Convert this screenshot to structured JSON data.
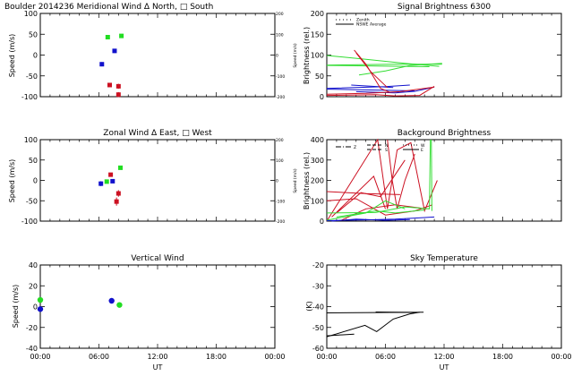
{
  "chart_data": [
    {
      "id": "meridional",
      "type": "scatter",
      "title": "Boulder   2014236     Meridional Wind   Δ North, □ South",
      "ylabel": "Speed (m/s)",
      "y2label": "Speed (m/s)",
      "xlabel": "",
      "xlim": [
        0,
        24
      ],
      "ylim": [
        -100,
        100
      ],
      "y2lim": [
        -200,
        200
      ],
      "yticks": [
        "100",
        "50",
        "0",
        "-50",
        "-100"
      ],
      "y2ticks": [
        "200",
        "100",
        "0",
        "-100",
        "-200"
      ],
      "series": [
        {
          "name": "green",
          "color": "#22dd22",
          "marker": "square",
          "points": [
            [
              6.9,
              43,
              0
            ],
            [
              8.3,
              46,
              0
            ]
          ]
        },
        {
          "name": "blue",
          "color": "#1111cc",
          "marker": "square",
          "points": [
            [
              6.3,
              -22,
              5
            ],
            [
              7.6,
              10,
              5
            ]
          ]
        },
        {
          "name": "red",
          "color": "#cc1122",
          "marker": "square",
          "points": [
            [
              7.1,
              -72,
              4
            ],
            [
              8.0,
              -75,
              6
            ],
            [
              8.0,
              -95,
              6
            ]
          ]
        }
      ]
    },
    {
      "id": "zonal",
      "type": "scatter",
      "title": "Zonal Wind     Δ East, □ West",
      "ylabel": "Speed (m/s)",
      "y2label": "Speed (m/s)",
      "xlim": [
        0,
        24
      ],
      "ylim": [
        -100,
        100
      ],
      "y2lim": [
        -200,
        200
      ],
      "yticks": [
        "100",
        "50",
        "0",
        "-50",
        "-100"
      ],
      "y2ticks": [
        "200",
        "100",
        "0",
        "-100",
        "-200"
      ],
      "series": [
        {
          "name": "green",
          "color": "#22dd22",
          "marker": "square",
          "points": [
            [
              8.2,
              31,
              0
            ],
            [
              6.8,
              -3,
              0
            ]
          ]
        },
        {
          "name": "blue",
          "color": "#1111cc",
          "marker": "square",
          "points": [
            [
              6.2,
              -8,
              6
            ],
            [
              7.4,
              -2,
              3
            ]
          ]
        },
        {
          "name": "red",
          "color": "#cc1122",
          "marker": "square",
          "points": [
            [
              7.2,
              14,
              3
            ],
            [
              8.0,
              -32,
              8
            ],
            [
              7.8,
              -52,
              10
            ]
          ]
        }
      ]
    },
    {
      "id": "vertical",
      "type": "scatter",
      "title": "Vertical Wind",
      "ylabel": "Speed (m/s)",
      "xlabel": "UT",
      "xlim": [
        0,
        24
      ],
      "ylim": [
        -50,
        50
      ],
      "xticks": [
        "00:00",
        "06:00",
        "12:00",
        "18:00",
        "00:00"
      ],
      "yticks": [
        "40",
        "20",
        "0",
        "-20",
        "-40"
      ],
      "series": [
        {
          "name": "green",
          "color": "#22dd22",
          "marker": "circle",
          "points": [
            [
              0.0,
              8
            ],
            [
              8.1,
              2
            ]
          ]
        },
        {
          "name": "blue",
          "color": "#1111cc",
          "marker": "circle",
          "points": [
            [
              0.0,
              -3
            ],
            [
              7.3,
              7
            ]
          ]
        }
      ]
    },
    {
      "id": "signal",
      "type": "line",
      "title": "Signal Brightness       6300",
      "ylabel": "Brightness (rel.)",
      "xlim": [
        0,
        24
      ],
      "ylim": [
        0,
        200
      ],
      "yticks": [
        "200",
        "150",
        "100",
        "50",
        "0"
      ],
      "legend": {
        "position": "top-left",
        "entries": [
          "Zenith",
          "NSWE Average"
        ]
      },
      "series": [
        {
          "name": "green",
          "color": "#33dd33",
          "lines": [
            [
              [
                0,
                99
              ],
              [
                4,
                90
              ],
              [
                8,
                80
              ],
              [
                11.5,
                73
              ]
            ],
            [
              [
                0,
                76
              ],
              [
                7,
                78
              ],
              [
                11.8,
                78
              ]
            ],
            [
              [
                3.3,
                52
              ],
              [
                6,
                62
              ],
              [
                8.5,
                75
              ],
              [
                11.8,
                80
              ]
            ],
            [
              [
                0,
                75
              ],
              [
                10.5,
                72
              ]
            ]
          ]
        },
        {
          "name": "blue",
          "color": "#1111cc",
          "lines": [
            [
              [
                0,
                20
              ],
              [
                6,
                24
              ],
              [
                8.5,
                28
              ]
            ],
            [
              [
                0,
                18
              ],
              [
                5,
                16
              ],
              [
                9,
                14
              ]
            ],
            [
              [
                2.5,
                28
              ],
              [
                6.8,
                22
              ]
            ],
            [
              [
                3,
                12
              ],
              [
                7,
                9
              ],
              [
                9,
                13
              ],
              [
                11,
                23
              ]
            ]
          ]
        },
        {
          "name": "red",
          "color": "#cc1122",
          "lines": [
            [
              [
                2.8,
                112
              ],
              [
                4,
                78
              ],
              [
                5.5,
                20
              ],
              [
                6.5,
                10
              ]
            ],
            [
              [
                3,
                105
              ],
              [
                4.5,
                60
              ],
              [
                6.2,
                22
              ]
            ],
            [
              [
                0,
                3
              ],
              [
                5,
                5
              ],
              [
                7,
                2
              ],
              [
                9.5,
                3
              ],
              [
                11,
                25
              ]
            ],
            [
              [
                0,
                6
              ],
              [
                4,
                8
              ],
              [
                7.5,
                12
              ],
              [
                11,
                23
              ]
            ]
          ]
        }
      ]
    },
    {
      "id": "background",
      "type": "line",
      "title": "Background Brightness",
      "ylabel": "Brightness (rel.)",
      "xlim": [
        0,
        24
      ],
      "ylim": [
        0,
        400
      ],
      "yticks": [
        "400",
        "300",
        "200",
        "100",
        "0"
      ],
      "legend": {
        "position": "top-left",
        "entries": [
          "Z",
          "N",
          "S",
          "W",
          "E"
        ]
      },
      "series": [
        {
          "name": "red",
          "color": "#cc1122",
          "lines": [
            [
              [
                0,
                0
              ],
              [
                5.2,
                400
              ],
              [
                6.2,
                60
              ],
              [
                7.2,
                350
              ],
              [
                8.6,
                385
              ],
              [
                10,
                50
              ],
              [
                11.3,
                200
              ]
            ],
            [
              [
                0,
                145
              ],
              [
                4,
                135
              ],
              [
                7.5,
                130
              ]
            ],
            [
              [
                0.5,
                20
              ],
              [
                4.8,
                220
              ],
              [
                6,
                60
              ]
            ],
            [
              [
                1,
                40
              ],
              [
                3.5,
                140
              ],
              [
                5.5,
                120
              ],
              [
                8,
                300
              ]
            ],
            [
              [
                0,
                100
              ],
              [
                3,
                110
              ],
              [
                6,
                30
              ],
              [
                9,
                50
              ],
              [
                10.8,
                80
              ]
            ],
            [
              [
                6.2,
                400
              ],
              [
                6.7,
                200
              ],
              [
                7.2,
                60
              ],
              [
                8,
                200
              ],
              [
                9,
                330
              ]
            ],
            [
              [
                1.5,
                5
              ],
              [
                4,
                60
              ],
              [
                7,
                80
              ],
              [
                10.2,
                60
              ]
            ]
          ]
        },
        {
          "name": "green",
          "color": "#33dd33",
          "lines": [
            [
              [
                0,
                40
              ],
              [
                5,
                42
              ],
              [
                8,
                70
              ],
              [
                10.5,
                60
              ],
              [
                10.6,
                400
              ]
            ],
            [
              [
                0,
                5
              ],
              [
                4,
                40
              ],
              [
                6,
                100
              ],
              [
                8,
                60
              ]
            ],
            [
              [
                1,
                20
              ],
              [
                5,
                50
              ],
              [
                7,
                40
              ],
              [
                10,
                55
              ]
            ],
            [
              [
                10.7,
                400
              ],
              [
                10.75,
                50
              ]
            ]
          ]
        },
        {
          "name": "blue",
          "color": "#1111cc",
          "lines": [
            [
              [
                0,
                2
              ],
              [
                4,
                6
              ],
              [
                7,
                10
              ],
              [
                9,
                15
              ],
              [
                11,
                20
              ]
            ],
            [
              [
                0.5,
                0
              ],
              [
                3,
                10
              ],
              [
                6,
                4
              ],
              [
                8.5,
                8
              ]
            ]
          ]
        }
      ]
    },
    {
      "id": "skytemp",
      "type": "line",
      "title": "Sky Temperature",
      "ylabel": "(K)",
      "xlabel": "UT",
      "xlim": [
        0,
        24
      ],
      "ylim": [
        -60,
        -20
      ],
      "xticks": [
        "00:00",
        "06:00",
        "12:00",
        "18:00",
        "00:00"
      ],
      "yticks": [
        "-20",
        "-30",
        "-40",
        "-50",
        "-60"
      ],
      "series": [
        {
          "name": "black",
          "color": "#000000",
          "lines": [
            [
              [
                0,
                -43
              ],
              [
                9.9,
                -42.7
              ]
            ],
            [
              [
                5,
                -42.6
              ],
              [
                9,
                -42.8
              ]
            ],
            [
              [
                0,
                -54.5
              ],
              [
                3.9,
                -49
              ],
              [
                5.1,
                -52
              ],
              [
                6.8,
                -46
              ],
              [
                8.5,
                -43.5
              ],
              [
                9.5,
                -42.7
              ]
            ],
            [
              [
                0,
                -54
              ],
              [
                2.8,
                -53.2
              ]
            ]
          ]
        }
      ]
    }
  ]
}
